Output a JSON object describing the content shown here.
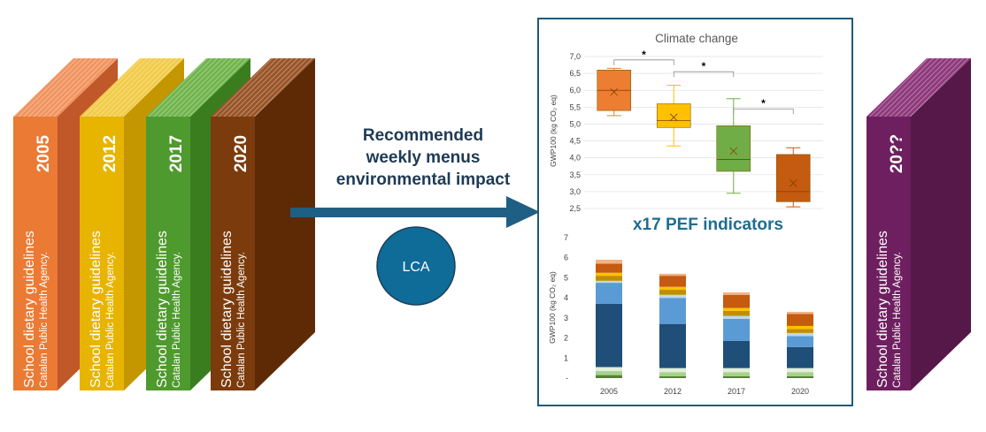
{
  "books": [
    {
      "year": "2005",
      "line1": "School dietary guidelines",
      "line2": "Catalan Public Health Agency.",
      "front": "#ea7a34",
      "spine": "#c0582a",
      "top": "#f19561"
    },
    {
      "year": "2012",
      "line1": "School dietary guidelines",
      "line2": "Catalan Public Health Agency.",
      "front": "#e7b400",
      "spine": "#c49600",
      "top": "#f2cc4a"
    },
    {
      "year": "2017",
      "line1": "School dietary guidelines",
      "line2": "Catalan Public Health Agency.",
      "front": "#4f9a2e",
      "spine": "#3a7d1f",
      "top": "#72b44e"
    },
    {
      "year": "2020",
      "line1": "School dietary guidelines",
      "line2": "Catalan Public Health Agency.",
      "front": "#7b3b0c",
      "spine": "#5e2a06",
      "top": "#9a5528"
    },
    {
      "year": "20??",
      "line1": "School dietary guidelines",
      "line2": "Catalan Public Health Agency.",
      "front": "#6e1f5f",
      "spine": "#561749",
      "top": "#8f3a7c"
    }
  ],
  "arrow_label": [
    "Recommended",
    "weekly menus",
    "environmental impact"
  ],
  "lca_label": "LCA",
  "pef_label": "x17 PEF indicators",
  "colors": {
    "arrow": "#1f5f83",
    "lca_fill": "#0f6b97",
    "panel_border": "#1e5b7a"
  },
  "chart_data": [
    {
      "type": "box",
      "title": "Climate change",
      "ylabel": "GWP100 (kg CO₂ eq)",
      "ylim": [
        2.5,
        7.0
      ],
      "yticks": [
        "2,5",
        "3,0",
        "3,5",
        "4,0",
        "4,5",
        "5,0",
        "5,5",
        "6,0",
        "6,5",
        "7,0"
      ],
      "categories": [
        "2005",
        "2012",
        "2017",
        "2020"
      ],
      "boxes": [
        {
          "min": 5.25,
          "q1": 5.4,
          "median": 6.0,
          "q3": 6.6,
          "max": 6.65,
          "mean": 5.95,
          "color": "#ed7d31"
        },
        {
          "min": 4.35,
          "q1": 4.9,
          "median": 5.1,
          "q3": 5.6,
          "max": 6.15,
          "mean": 5.2,
          "color": "#ffc000"
        },
        {
          "min": 2.95,
          "q1": 3.6,
          "median": 3.95,
          "q3": 4.95,
          "max": 5.75,
          "mean": 4.2,
          "color": "#70ad47"
        },
        {
          "min": 2.55,
          "q1": 2.7,
          "median": 3.0,
          "q3": 4.1,
          "max": 4.3,
          "mean": 3.25,
          "color": "#c55a11"
        }
      ],
      "significance": [
        "*",
        "*",
        "*"
      ]
    },
    {
      "type": "stacked-bar",
      "ylabel": "GWP100 (kg CO₂ eq)",
      "ylim": [
        0,
        7
      ],
      "yticks": [
        "-",
        "1",
        "2",
        "3",
        "4",
        "5",
        "6",
        "7"
      ],
      "categories": [
        "2005",
        "2012",
        "2017",
        "2020"
      ],
      "series": [
        {
          "color": "#548235",
          "values": [
            0.15,
            0.1,
            0.1,
            0.1
          ]
        },
        {
          "color": "#a9d18e",
          "values": [
            0.2,
            0.2,
            0.2,
            0.2
          ]
        },
        {
          "color": "#e2efda",
          "values": [
            0.2,
            0.2,
            0.2,
            0.2
          ]
        },
        {
          "color": "#1f4e79",
          "values": [
            3.15,
            2.2,
            1.35,
            1.05
          ]
        },
        {
          "color": "#5b9bd5",
          "values": [
            1.05,
            1.3,
            1.1,
            0.55
          ]
        },
        {
          "color": "#bdd7ee",
          "values": [
            0.1,
            0.15,
            0.15,
            0.15
          ]
        },
        {
          "color": "#bf8f00",
          "values": [
            0.25,
            0.25,
            0.25,
            0.2
          ]
        },
        {
          "color": "#ffc000",
          "values": [
            0.15,
            0.15,
            0.15,
            0.15
          ]
        },
        {
          "color": "#c55a11",
          "values": [
            0.45,
            0.55,
            0.65,
            0.6
          ]
        },
        {
          "color": "#f4b183",
          "values": [
            0.2,
            0.1,
            0.12,
            0.1
          ]
        }
      ]
    }
  ]
}
